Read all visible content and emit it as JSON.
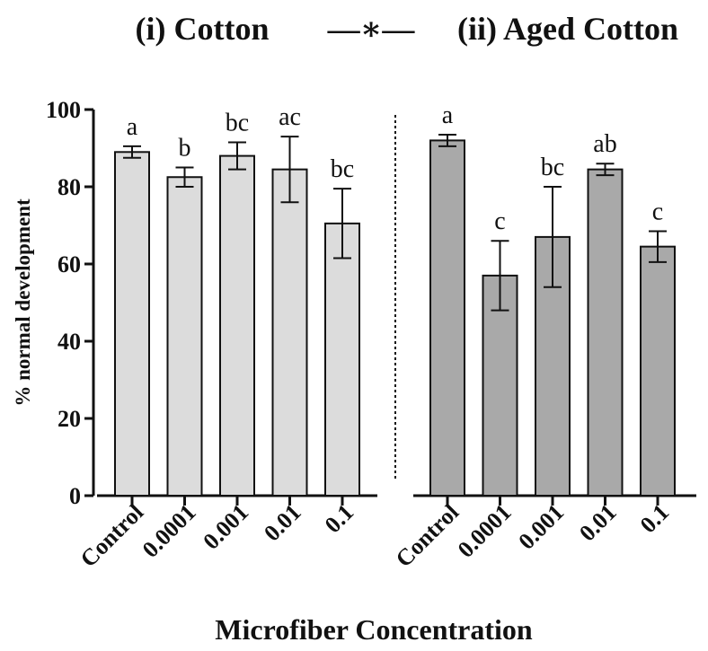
{
  "chart_data": {
    "type": "bar",
    "title_left": "(i) Cotton",
    "title_right": "(ii) Aged Cotton",
    "separator_symbol": "—∗—",
    "xlabel": "Microfiber Concentration",
    "ylabel": "% normal development",
    "ylim": [
      0,
      100
    ],
    "yticks": [
      0,
      20,
      40,
      60,
      80,
      100
    ],
    "grid": false,
    "groups": [
      {
        "name": "(i) Cotton",
        "color": "#dcdcdc",
        "categories": [
          "Control",
          "0.0001",
          "0.001",
          "0.01",
          "0.1"
        ],
        "values": [
          89,
          82.5,
          88,
          84.5,
          70.5
        ],
        "error": [
          1.5,
          2.5,
          3.5,
          8.5,
          9
        ],
        "labels": [
          "a",
          "b",
          "bc",
          "ac",
          "bc"
        ]
      },
      {
        "name": "(ii) Aged Cotton",
        "color": "#a9a9a9",
        "categories": [
          "Control",
          "0.0001",
          "0.001",
          "0.01",
          "0.1"
        ],
        "values": [
          92,
          57,
          67,
          84.5,
          64.5
        ],
        "error": [
          1.5,
          9,
          13,
          1.5,
          4
        ],
        "labels": [
          "a",
          "c",
          "bc",
          "ab",
          "c"
        ]
      }
    ]
  }
}
